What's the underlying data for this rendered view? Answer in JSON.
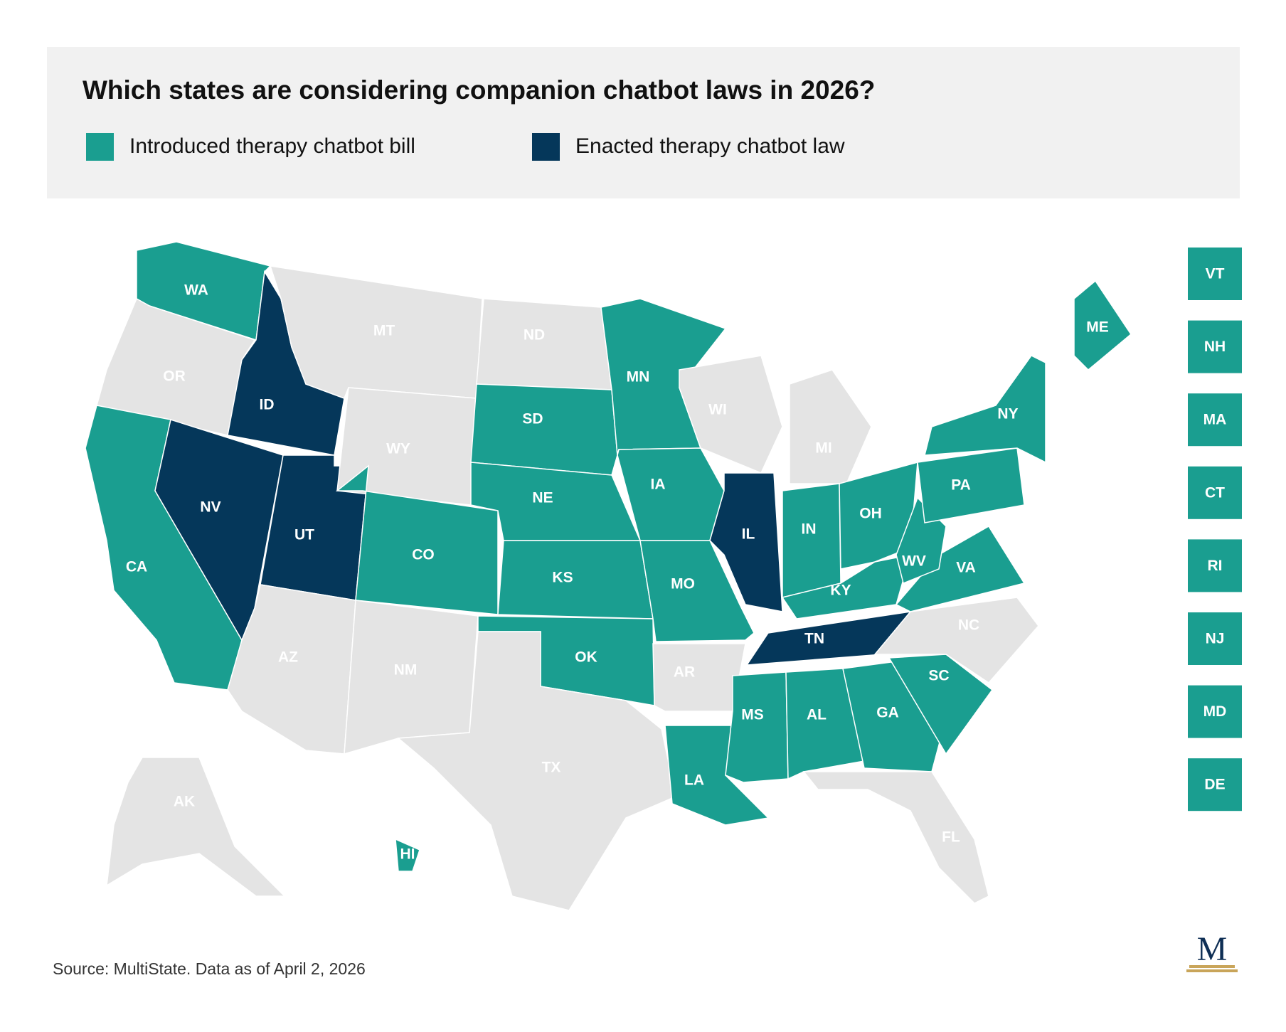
{
  "title": "Which states are considering companion chatbot laws in 2026?",
  "legend": [
    {
      "label": "Introduced therapy chatbot bill",
      "color": "#1a9e90",
      "key": "introduced"
    },
    {
      "label": "Enacted therapy chatbot law",
      "color": "#05375a",
      "key": "enacted"
    }
  ],
  "colors": {
    "introduced": "#1a9e90",
    "enacted": "#05375a",
    "none": "#e4e4e4",
    "label_on_color": "#ffffff",
    "label_on_none": "#ffffff"
  },
  "states": [
    {
      "abbr": "WA",
      "status": "introduced"
    },
    {
      "abbr": "OR",
      "status": "none"
    },
    {
      "abbr": "CA",
      "status": "introduced"
    },
    {
      "abbr": "ID",
      "status": "enacted"
    },
    {
      "abbr": "NV",
      "status": "enacted"
    },
    {
      "abbr": "UT",
      "status": "enacted"
    },
    {
      "abbr": "AZ",
      "status": "none"
    },
    {
      "abbr": "MT",
      "status": "none"
    },
    {
      "abbr": "WY",
      "status": "none"
    },
    {
      "abbr": "CO",
      "status": "introduced"
    },
    {
      "abbr": "NM",
      "status": "none"
    },
    {
      "abbr": "ND",
      "status": "none"
    },
    {
      "abbr": "SD",
      "status": "introduced"
    },
    {
      "abbr": "NE",
      "status": "introduced"
    },
    {
      "abbr": "KS",
      "status": "introduced"
    },
    {
      "abbr": "OK",
      "status": "introduced"
    },
    {
      "abbr": "TX",
      "status": "none"
    },
    {
      "abbr": "MN",
      "status": "introduced"
    },
    {
      "abbr": "IA",
      "status": "introduced"
    },
    {
      "abbr": "MO",
      "status": "introduced"
    },
    {
      "abbr": "AR",
      "status": "none"
    },
    {
      "abbr": "LA",
      "status": "introduced"
    },
    {
      "abbr": "WI",
      "status": "none"
    },
    {
      "abbr": "IL",
      "status": "enacted"
    },
    {
      "abbr": "MI",
      "status": "none"
    },
    {
      "abbr": "IN",
      "status": "introduced"
    },
    {
      "abbr": "OH",
      "status": "introduced"
    },
    {
      "abbr": "KY",
      "status": "introduced"
    },
    {
      "abbr": "TN",
      "status": "enacted"
    },
    {
      "abbr": "MS",
      "status": "introduced"
    },
    {
      "abbr": "AL",
      "status": "introduced"
    },
    {
      "abbr": "GA",
      "status": "introduced"
    },
    {
      "abbr": "FL",
      "status": "none"
    },
    {
      "abbr": "SC",
      "status": "introduced"
    },
    {
      "abbr": "NC",
      "status": "none"
    },
    {
      "abbr": "VA",
      "status": "introduced"
    },
    {
      "abbr": "WV",
      "status": "introduced"
    },
    {
      "abbr": "PA",
      "status": "introduced"
    },
    {
      "abbr": "NY",
      "status": "introduced"
    },
    {
      "abbr": "ME",
      "status": "introduced"
    },
    {
      "abbr": "AK",
      "status": "none"
    },
    {
      "abbr": "HI",
      "status": "introduced"
    }
  ],
  "small_states": [
    {
      "abbr": "VT",
      "status": "introduced"
    },
    {
      "abbr": "NH",
      "status": "introduced"
    },
    {
      "abbr": "MA",
      "status": "introduced"
    },
    {
      "abbr": "CT",
      "status": "introduced"
    },
    {
      "abbr": "RI",
      "status": "introduced"
    },
    {
      "abbr": "NJ",
      "status": "introduced"
    },
    {
      "abbr": "MD",
      "status": "introduced"
    },
    {
      "abbr": "DE",
      "status": "introduced"
    }
  ],
  "source": "Source: MultiState. Data as of April 2, 2026",
  "logo_letter": "M"
}
